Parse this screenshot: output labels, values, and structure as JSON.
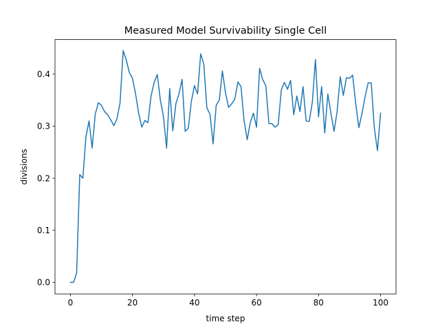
{
  "chart_data": {
    "type": "line",
    "title": "Measured Model Survivability Single Cell",
    "xlabel": "time step",
    "ylabel": "divisions",
    "xlim": [
      -4.98,
      104.98
    ],
    "ylim": [
      -0.0222,
      0.4662
    ],
    "xticks": [
      0,
      20,
      40,
      60,
      80,
      100
    ],
    "xtick_labels": [
      "0",
      "20",
      "40",
      "60",
      "80",
      "100"
    ],
    "yticks": [
      0.0,
      0.1,
      0.2,
      0.3,
      0.4
    ],
    "ytick_labels": [
      "0.0",
      "0.1",
      "0.2",
      "0.3",
      "0.4"
    ],
    "grid": false,
    "line_color": "#1f77b4",
    "series": [
      {
        "x": [
          0,
          1,
          2,
          3,
          4,
          5,
          6,
          7,
          8,
          9,
          10,
          11,
          12,
          13,
          14,
          15,
          16,
          17,
          18,
          19,
          20,
          21,
          22,
          23,
          24,
          25,
          26,
          27,
          28,
          29,
          30,
          31,
          32,
          33,
          34,
          35,
          36,
          37,
          38,
          39,
          40,
          41,
          42,
          43,
          44,
          45,
          46,
          47,
          48,
          49,
          50,
          51,
          52,
          53,
          54,
          55,
          56,
          57,
          58,
          59,
          60,
          61,
          62,
          63,
          64,
          65,
          66,
          67,
          68,
          69,
          70,
          71,
          72,
          73,
          74,
          75,
          76,
          77,
          78,
          79,
          80,
          81,
          82,
          83,
          84,
          85,
          86,
          87,
          88,
          89,
          90,
          91,
          92,
          93,
          94,
          95,
          96,
          97,
          98,
          99,
          100
        ],
        "values": [
          0.0,
          0.0,
          0.018,
          0.207,
          0.2,
          0.28,
          0.31,
          0.258,
          0.323,
          0.345,
          0.34,
          0.328,
          0.322,
          0.312,
          0.301,
          0.314,
          0.345,
          0.445,
          0.427,
          0.403,
          0.392,
          0.362,
          0.325,
          0.298,
          0.311,
          0.307,
          0.358,
          0.384,
          0.399,
          0.35,
          0.318,
          0.258,
          0.372,
          0.291,
          0.343,
          0.362,
          0.39,
          0.29,
          0.296,
          0.348,
          0.378,
          0.362,
          0.439,
          0.419,
          0.335,
          0.323,
          0.266,
          0.34,
          0.35,
          0.406,
          0.364,
          0.336,
          0.343,
          0.352,
          0.385,
          0.376,
          0.31,
          0.274,
          0.307,
          0.325,
          0.298,
          0.411,
          0.389,
          0.378,
          0.305,
          0.305,
          0.298,
          0.303,
          0.37,
          0.384,
          0.371,
          0.388,
          0.322,
          0.358,
          0.328,
          0.376,
          0.31,
          0.309,
          0.346,
          0.428,
          0.318,
          0.376,
          0.287,
          0.362,
          0.325,
          0.29,
          0.329,
          0.395,
          0.359,
          0.393,
          0.392,
          0.398,
          0.343,
          0.297,
          0.324,
          0.356,
          0.383,
          0.383,
          0.296,
          0.253,
          0.325
        ]
      }
    ]
  }
}
